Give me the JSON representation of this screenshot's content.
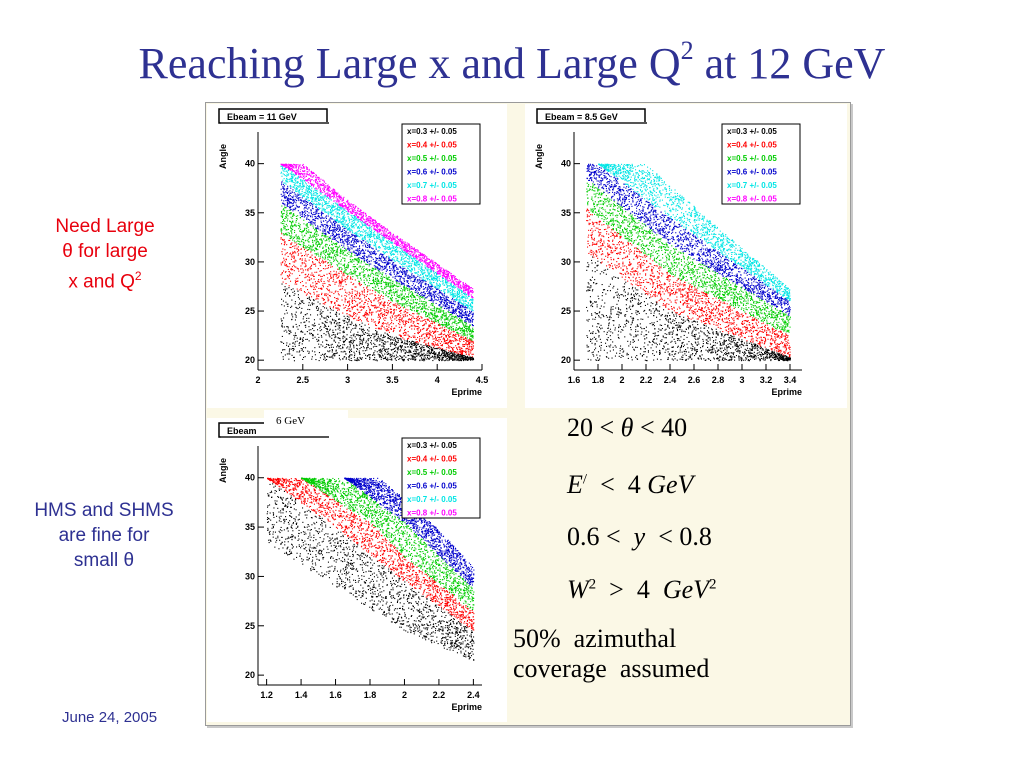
{
  "title": {
    "main": "Reaching Large x and Large Q",
    "sup": "2",
    "tail": " at 12 GeV"
  },
  "side_notes": {
    "large_theta": {
      "line1": "Need Large",
      "line2": "θ for large",
      "line3_pre": "x and Q",
      "line3_sup": "2"
    },
    "hms": {
      "line1": "HMS and SHMS",
      "line2": "are fine for",
      "line3": "small θ"
    }
  },
  "date": "June 24, 2005",
  "overlay_label": "6 GeV",
  "conditions": {
    "c1": {
      "a": "20",
      "op1": "<",
      "var": "θ",
      "op2": "<",
      "b": "40"
    },
    "c2": {
      "var": "E",
      "prime": "/",
      "op": "<",
      "val": "4",
      "unit": "GeV"
    },
    "c3": {
      "a": "0.6",
      "op1": "<",
      "var": "y",
      "op2": "<",
      "b": "0.8"
    },
    "c4": {
      "var": "W",
      "sup": "2",
      "op": ">",
      "val": "4",
      "unit": "GeV",
      "unit_sup": "2"
    }
  },
  "coverage_note": {
    "line1": "50%  azimuthal",
    "line2": "coverage  assumed"
  },
  "colors": {
    "title": "#2e3192",
    "red_note": "#e8000d",
    "frame_bg": "#fbf8e6"
  },
  "chart_data": [
    {
      "type": "scatter",
      "title": "Ebeam = 11 GeV",
      "xlabel": "Eprime",
      "ylabel": "Angle",
      "xlim": [
        2,
        4.5
      ],
      "ylim": [
        19,
        42
      ],
      "xticks": [
        "2",
        "2.5",
        "3",
        "3.5",
        "4",
        "4.5"
      ],
      "yticks": [
        "20",
        "25",
        "30",
        "35",
        "40"
      ],
      "legend": [
        "x=0.3 +/- 0.05",
        "x=0.4 +/- 0.05",
        "x=0.5 +/- 0.05",
        "x=0.6 +/- 0.05",
        "x=0.7 +/- 0.05",
        "x=0.8 +/- 0.05"
      ],
      "legend_position": "top-right",
      "series": [
        {
          "name": "x=0.3 +/- 0.05",
          "color": "#000000",
          "upper": [
            [
              2.25,
              28
            ],
            [
              3,
              24.5
            ],
            [
              3.5,
              22.5
            ],
            [
              4.4,
              20.3
            ]
          ],
          "lower": [
            [
              2.25,
              20
            ],
            [
              4.4,
              20
            ]
          ]
        },
        {
          "name": "x=0.4 +/- 0.05",
          "color": "#ff0000",
          "upper": [
            [
              2.25,
              33
            ],
            [
              3,
              28.7
            ],
            [
              3.5,
              26
            ],
            [
              4.4,
              22
            ]
          ],
          "lower": [
            [
              2.25,
              28
            ],
            [
              3,
              24.5
            ],
            [
              3.5,
              22.5
            ],
            [
              4.4,
              20.3
            ]
          ]
        },
        {
          "name": "x=0.5 +/- 0.05",
          "color": "#00cc00",
          "upper": [
            [
              2.25,
              36
            ],
            [
              3,
              31.2
            ],
            [
              3.5,
              28.3
            ],
            [
              4.4,
              23.5
            ]
          ],
          "lower": [
            [
              2.25,
              33
            ],
            [
              3,
              28.7
            ],
            [
              3.5,
              26
            ],
            [
              4.4,
              22
            ]
          ]
        },
        {
          "name": "x=0.6 +/- 0.05",
          "color": "#0000cc",
          "upper": [
            [
              2.25,
              38.3
            ],
            [
              3,
              33.3
            ],
            [
              3.5,
              30.2
            ],
            [
              4.4,
              25
            ]
          ],
          "lower": [
            [
              2.25,
              36
            ],
            [
              3,
              31.2
            ],
            [
              3.5,
              28.3
            ],
            [
              4.4,
              23.5
            ]
          ]
        },
        {
          "name": "x=0.7 +/- 0.05",
          "color": "#00e5e5",
          "upper": [
            [
              2.25,
              40
            ],
            [
              3,
              35.2
            ],
            [
              3.5,
              32
            ],
            [
              4.4,
              26.3
            ]
          ],
          "lower": [
            [
              2.25,
              38.3
            ],
            [
              3,
              33.3
            ],
            [
              3.5,
              30.2
            ],
            [
              4.4,
              25
            ]
          ]
        },
        {
          "name": "x=0.8 +/- 0.05",
          "color": "#ff00ff",
          "upper": [
            [
              2.5,
              40
            ],
            [
              3,
              36.3
            ],
            [
              3.5,
              33
            ],
            [
              4.4,
              27.3
            ]
          ],
          "lower": [
            [
              2.25,
              40
            ],
            [
              3,
              35.2
            ],
            [
              3.5,
              32
            ],
            [
              4.4,
              26.3
            ]
          ]
        }
      ]
    },
    {
      "type": "scatter",
      "title": "Ebeam = 8.5 GeV",
      "xlabel": "Eprime",
      "ylabel": "Angle",
      "xlim": [
        1.6,
        3.5
      ],
      "ylim": [
        19,
        42
      ],
      "xticks": [
        "1.6",
        "1.8",
        "2",
        "2.2",
        "2.4",
        "2.6",
        "2.8",
        "3",
        "3.2",
        "3.4"
      ],
      "yticks": [
        "20",
        "25",
        "30",
        "35",
        "40"
      ],
      "legend": [
        "x=0.3 +/- 0.05",
        "x=0.4 +/- 0.05",
        "x=0.5 +/- 0.05",
        "x=0.6 +/- 0.05",
        "x=0.7 +/- 0.05",
        "x=0.8 +/- 0.05"
      ],
      "legend_position": "top-right",
      "series": [
        {
          "name": "x=0.3 +/- 0.05",
          "color": "#000000",
          "upper": [
            [
              1.7,
              31
            ],
            [
              2.4,
              25
            ],
            [
              3.4,
              20.3
            ]
          ],
          "lower": [
            [
              1.7,
              20
            ],
            [
              3.4,
              20
            ]
          ]
        },
        {
          "name": "x=0.4 +/- 0.05",
          "color": "#ff0000",
          "upper": [
            [
              1.7,
              35.5
            ],
            [
              2.4,
              28.8
            ],
            [
              3.4,
              22.5
            ]
          ],
          "lower": [
            [
              1.7,
              31
            ],
            [
              2.4,
              25
            ],
            [
              3.4,
              20.3
            ]
          ]
        },
        {
          "name": "x=0.5 +/- 0.05",
          "color": "#00cc00",
          "upper": [
            [
              1.7,
              38.5
            ],
            [
              2.4,
              31.8
            ],
            [
              3.4,
              24.5
            ]
          ],
          "lower": [
            [
              1.7,
              35.5
            ],
            [
              2.4,
              28.8
            ],
            [
              3.4,
              22.5
            ]
          ]
        },
        {
          "name": "x=0.6 +/- 0.05",
          "color": "#0000cc",
          "upper": [
            [
              1.8,
              40
            ],
            [
              2.4,
              34.5
            ],
            [
              3.4,
              26
            ]
          ],
          "lower": [
            [
              1.7,
              38.5
            ],
            [
              2.4,
              31.8
            ],
            [
              3.4,
              24.5
            ]
          ]
        },
        {
          "name": "x=0.7 +/- 0.05",
          "color": "#00e5e5",
          "upper": [
            [
              2.2,
              40
            ],
            [
              2.8,
              33.5
            ],
            [
              3.4,
              27.3
            ]
          ],
          "lower": [
            [
              1.8,
              40
            ],
            [
              2.4,
              34.5
            ],
            [
              3.4,
              26
            ]
          ]
        }
      ]
    },
    {
      "type": "scatter",
      "title": "Ebeam",
      "xlabel": "Eprime",
      "ylabel": "Angle",
      "xlim": [
        1.15,
        2.45
      ],
      "ylim": [
        19,
        42
      ],
      "xticks": [
        "1.2",
        "1.4",
        "1.6",
        "1.8",
        "2",
        "2.2",
        "2.4"
      ],
      "yticks": [
        "20",
        "25",
        "30",
        "35",
        "40"
      ],
      "legend": [
        "x=0.3 +/- 0.05",
        "x=0.4 +/- 0.05",
        "x=0.5 +/- 0.05",
        "x=0.6 +/- 0.05",
        "x=0.7 +/- 0.05",
        "x=0.8 +/- 0.05"
      ],
      "legend_position": "top-right",
      "series": [
        {
          "name": "x=0.3 +/- 0.05",
          "color": "#000000",
          "upper": [
            [
              1.2,
              40
            ],
            [
              1.6,
              35
            ],
            [
              2.0,
              29.5
            ],
            [
              2.4,
              24.5
            ]
          ],
          "lower": [
            [
              1.2,
              33.5
            ],
            [
              1.6,
              29
            ],
            [
              2.0,
              24.5
            ],
            [
              2.4,
              21.5
            ]
          ]
        },
        {
          "name": "x=0.4 +/- 0.05",
          "color": "#ff0000",
          "upper": [
            [
              1.4,
              40
            ],
            [
              1.8,
              35.5
            ],
            [
              2.0,
              32
            ],
            [
              2.4,
              26.5
            ]
          ],
          "lower": [
            [
              1.2,
              40
            ],
            [
              1.6,
              35
            ],
            [
              2.0,
              29.5
            ],
            [
              2.4,
              24.5
            ]
          ]
        },
        {
          "name": "x=0.5 +/- 0.05",
          "color": "#00cc00",
          "upper": [
            [
              1.65,
              40
            ],
            [
              2.0,
              35.5
            ],
            [
              2.4,
              28.8
            ]
          ],
          "lower": [
            [
              1.4,
              40
            ],
            [
              1.8,
              35.5
            ],
            [
              2.0,
              32
            ],
            [
              2.4,
              26.5
            ]
          ]
        },
        {
          "name": "x=0.6 +/- 0.05",
          "color": "#0000cc",
          "upper": [
            [
              1.85,
              40
            ],
            [
              2.1,
              36.5
            ],
            [
              2.4,
              31
            ]
          ],
          "lower": [
            [
              1.65,
              40
            ],
            [
              2.0,
              35.5
            ],
            [
              2.4,
              28.8
            ]
          ]
        }
      ]
    }
  ]
}
